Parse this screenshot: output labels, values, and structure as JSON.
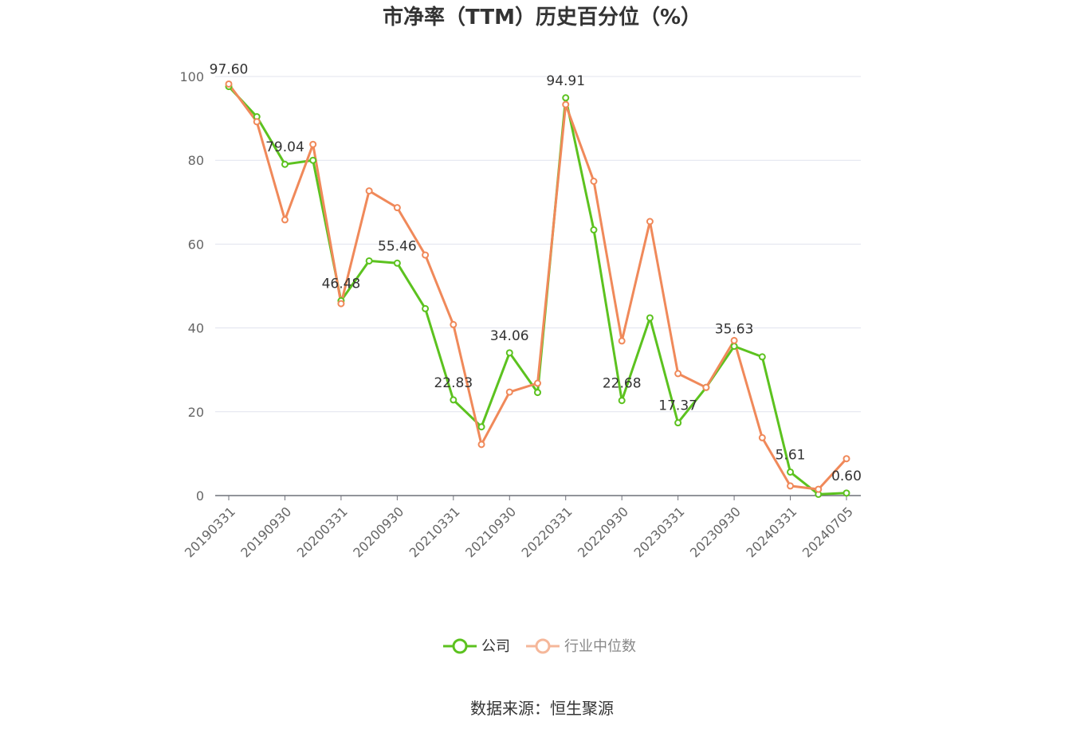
{
  "chart_data": {
    "type": "line",
    "title": "市净率（TTM）历史百分位（%）",
    "ylim": [
      0,
      100
    ],
    "y_ticks": [
      "0",
      "20",
      "40",
      "60",
      "80",
      "100"
    ],
    "grid": true,
    "legend_position": "bottom-center",
    "x": [
      "20190331",
      "20190630",
      "20190930",
      "20191231",
      "20200331",
      "20200630",
      "20200930",
      "20201231",
      "20210331",
      "20210630",
      "20210930",
      "20211231",
      "20220331",
      "20220630",
      "20220930",
      "20221231",
      "20230331",
      "20230630",
      "20230930",
      "20231231",
      "20240331",
      "20240630",
      "20240705"
    ],
    "x_tick_labels": [
      "20190331",
      "20190930",
      "20200331",
      "20200930",
      "20210331",
      "20210930",
      "20220331",
      "20220930",
      "20230331",
      "20230930",
      "20240331",
      "20240705"
    ],
    "series": [
      {
        "name": "公司",
        "color": "#5cc21f",
        "values": [
          97.6,
          90.4,
          79.04,
          80.0,
          46.48,
          56.0,
          55.46,
          44.6,
          22.83,
          16.4,
          34.06,
          24.6,
          94.91,
          63.4,
          22.68,
          42.4,
          17.37,
          25.8,
          35.63,
          33.1,
          5.61,
          0.3,
          0.6
        ]
      },
      {
        "name": "行业中位数",
        "color": "#f0895a",
        "values": [
          98.2,
          89.2,
          65.8,
          83.8,
          45.8,
          72.7,
          68.7,
          57.4,
          40.8,
          12.2,
          24.7,
          26.8,
          93.3,
          75.0,
          36.9,
          65.4,
          29.1,
          25.8,
          37.0,
          13.8,
          2.3,
          1.5,
          8.8
        ]
      }
    ],
    "data_labels": [
      {
        "index": 0,
        "text": "97.60"
      },
      {
        "index": 2,
        "text": "79.04"
      },
      {
        "index": 4,
        "text": "46.48"
      },
      {
        "index": 6,
        "text": "55.46"
      },
      {
        "index": 8,
        "text": "22.83"
      },
      {
        "index": 10,
        "text": "34.06"
      },
      {
        "index": 12,
        "text": "94.91"
      },
      {
        "index": 14,
        "text": "22.68"
      },
      {
        "index": 16,
        "text": "17.37"
      },
      {
        "index": 18,
        "text": "35.63"
      },
      {
        "index": 20,
        "text": "5.61"
      },
      {
        "index": 22,
        "text": "0.60"
      }
    ]
  },
  "source": "数据来源：恒生聚源"
}
